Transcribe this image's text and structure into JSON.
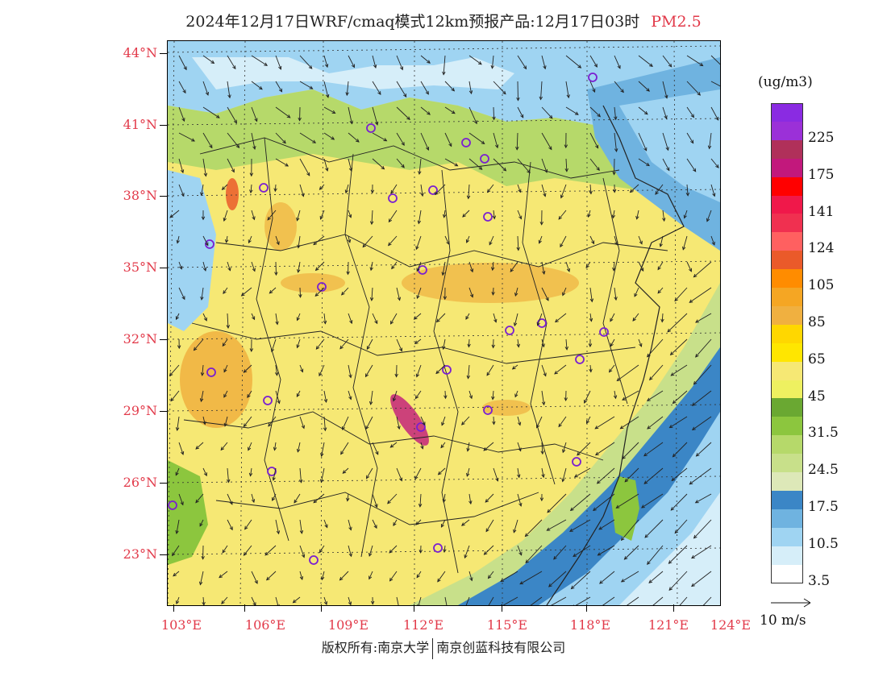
{
  "title": {
    "main": "2024年12月17日WRF/cmaq模式12km预报产品:12月17日03时",
    "species": "PM2.5"
  },
  "colors": {
    "accent_red": "#e23a4a",
    "dominant_fill": "#f6e874"
  },
  "axes": {
    "lat_labels": [
      "44°N",
      "41°N",
      "38°N",
      "35°N",
      "32°N",
      "29°N",
      "26°N",
      "23°N"
    ],
    "lon_labels": [
      "103°E",
      "106°E",
      "109°E",
      "112°E",
      "115°E",
      "118°E",
      "121°E",
      "124°E"
    ]
  },
  "legend": {
    "unit": "(ug/m3)",
    "bins": [
      {
        "color": "#8a2be2",
        "label": ""
      },
      {
        "color": "#9b30d8",
        "label": "225"
      },
      {
        "color": "#b0305a",
        "label": ""
      },
      {
        "color": "#c2187c",
        "label": "175"
      },
      {
        "color": "#ff0000",
        "label": ""
      },
      {
        "color": "#f0184a",
        "label": "141"
      },
      {
        "color": "#f03050",
        "label": ""
      },
      {
        "color": "#ff6060",
        "label": "124"
      },
      {
        "color": "#ea5a2a",
        "label": ""
      },
      {
        "color": "#ff8c00",
        "label": "105"
      },
      {
        "color": "#f5a623",
        "label": ""
      },
      {
        "color": "#f0b040",
        "label": "85"
      },
      {
        "color": "#ffd700",
        "label": ""
      },
      {
        "color": "#ffe600",
        "label": "65"
      },
      {
        "color": "#f6e874",
        "label": ""
      },
      {
        "color": "#eef060",
        "label": "45"
      },
      {
        "color": "#6aa832",
        "label": ""
      },
      {
        "color": "#8cc63e",
        "label": "31.5"
      },
      {
        "color": "#b6d96a",
        "label": ""
      },
      {
        "color": "#c8e08a",
        "label": "24.5"
      },
      {
        "color": "#dde8b8",
        "label": ""
      },
      {
        "color": "#3b86c6",
        "label": "17.5"
      },
      {
        "color": "#6fb3e0",
        "label": ""
      },
      {
        "color": "#9fd4f2",
        "label": "10.5"
      },
      {
        "color": "#d6eef9",
        "label": ""
      },
      {
        "color": "#ffffff",
        "label": "3.5"
      }
    ]
  },
  "wind_reference": {
    "label": "10 m/s"
  },
  "footer": {
    "left": "版权所有:南京大学",
    "right": "南京创蓝科技有限公司"
  }
}
